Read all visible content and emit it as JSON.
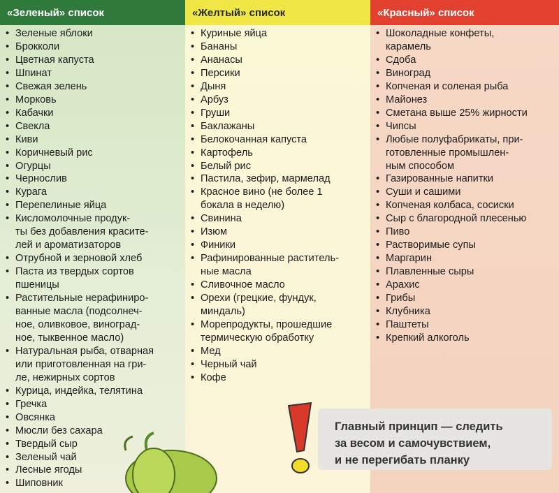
{
  "green_list": {
    "title": "«Зеленый» список",
    "color": "#2f7a3a",
    "items": [
      "Зеленые яблоки",
      "Брокколи",
      "Цветная капуста",
      "Шпинат",
      "Свежая зелень",
      "Морковь",
      "Кабачки",
      "Свекла",
      "Киви",
      "Коричневый рис",
      "Огурцы",
      "Чернослив",
      "Курага",
      "Перепелиные яйца",
      "Кисломолочные продук-\nты без добавления красите-\nлей и ароматизаторов",
      "Отрубной и зерновой хлеб",
      "Паста из твердых сортов\nпшеницы",
      "Растительные нерафиниро-\nванные масла (подсолнеч-\nное, оливковое, виноград-\nное, тыквенное масло)",
      "Натуральная рыба, отварная\nили приготовленная на гри-\nле, нежирных сортов",
      "Курица, индейка, телятина",
      "Гречка",
      "Овсянка",
      "Мюсли без сахара",
      "Твердый сыр",
      "Зеленый чай",
      "Лесные ягоды",
      "Шиповник"
    ]
  },
  "yellow_list": {
    "title": "«Желтый» список",
    "color": "#f0e645",
    "items": [
      "Куриные яйца",
      "Бананы",
      "Ананасы",
      "Персики",
      "Дыня",
      "Арбуз",
      "Груши",
      "Баклажаны",
      "Белокочанная капуста",
      "Картофель",
      "Белый рис",
      "Пастила, зефир, мармелад",
      "Красное вино (не более 1\nбокала в неделю)",
      "Свинина",
      "Изюм",
      "Финики",
      "Рафинированные раститель-\nные масла",
      "Сливочное масло",
      "Орехи (грецкие, фундук,\nминдаль)",
      "Морепродукты, прошедшие\nтермическую обработку",
      "Мед",
      "Черный чай",
      "Кофе"
    ]
  },
  "red_list": {
    "title": "«Красный» список",
    "color": "#e2412f",
    "items": [
      "Шоколадные конфеты,\nкарамель",
      "Сдоба",
      "Виноград",
      "Копченая и соленая рыба",
      "Майонез",
      "Сметана выше 25% жирности",
      "Чипсы",
      "Любые полуфабрикаты, при-\nготовленные промышлен-\nным способом",
      "Газированные напитки",
      "Суши и сашими",
      "Копченая колбаса, сосиски",
      "Сыр с благородной плесенью",
      "Пиво",
      "Растворимые супы",
      "Маргарин",
      "Плавленные сыры",
      "Арахис",
      "Грибы",
      "Клубника",
      "Паштеты",
      "Крепкий алкоголь"
    ]
  },
  "callout": {
    "text": "Главный принцип — следить\nза весом и самочувствием,\nи не перегибать планку",
    "icon": "exclamation-icon"
  }
}
